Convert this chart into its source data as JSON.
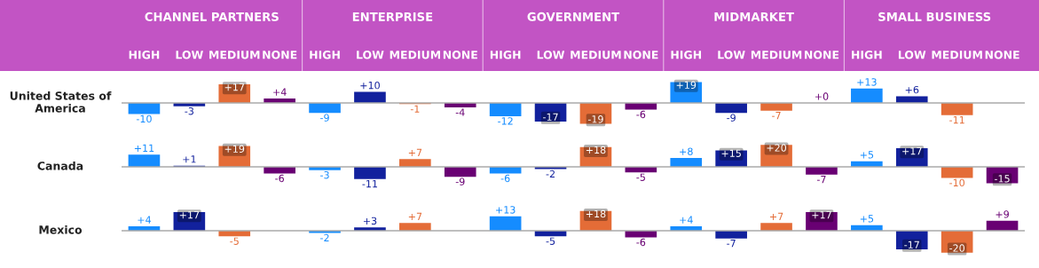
{
  "chart_data": [
    {
      "type": "bar",
      "ylabel": "United States of America",
      "tick_labels": "x",
      "annotations": [
        "CHANNEL PARTNERS",
        "ENTERPRISE",
        "GOVERNMENT",
        "MIDMARKET",
        "SMALL BUSINESS"
      ],
      "categories": [
        "HIGH",
        "LOW",
        "MEDIUM",
        "NONE",
        "HIGH",
        "LOW",
        "MEDIUM",
        "NONE",
        "HIGH",
        "LOW",
        "MEDIUM",
        "NONE",
        "HIGH",
        "LOW",
        "MEDIUM",
        "NONE",
        "HIGH",
        "LOW",
        "MEDIUM",
        "NONE"
      ],
      "values": [
        -10,
        -3,
        17,
        4,
        -9,
        10,
        -1,
        -4,
        -12,
        -17,
        -19,
        -6,
        19,
        -9,
        -7,
        0,
        13,
        6,
        -11,
        null
      ],
      "value_labels": [
        "-10",
        "-3",
        "+17",
        "+4",
        "-9",
        "+10",
        "-1",
        "-4",
        "-12",
        "-17",
        "-19",
        "-6",
        "+19",
        "-9",
        "-7",
        "+0",
        "+13",
        "+6",
        "-11",
        null
      ],
      "colors": [
        "#158cff",
        "#12219d",
        "#e46c37",
        "#690073",
        "#158cff",
        "#12219d",
        "#e46c37",
        "#690073",
        "#158cff",
        "#12219d",
        "#e46c37",
        "#690073",
        "#158cff",
        "#12219d",
        "#e46c37",
        "#690073",
        "#158cff",
        "#12219d",
        "#e46c37",
        "#690073"
      ]
    },
    {
      "type": "bar",
      "ylabel": "Canada",
      "tick_labels": false,
      "values": [
        11,
        1,
        19,
        -6,
        -3,
        -11,
        7,
        -9,
        -6,
        -2,
        18,
        -5,
        8,
        15,
        20,
        -7,
        5,
        17,
        -10,
        -15
      ],
      "value_labels": [
        "+11",
        "+1",
        "+19",
        "-6",
        "-3",
        "-11",
        "+7",
        "-9",
        "-6",
        "-2",
        "+18",
        "-5",
        "+8",
        "+15",
        "+20",
        "-7",
        "+5",
        "+17",
        "-10",
        "-15"
      ],
      "colors": [
        "#158cff",
        "#12219d",
        "#e46c37",
        "#690073",
        "#158cff",
        "#12219d",
        "#e46c37",
        "#690073",
        "#158cff",
        "#12219d",
        "#e46c37",
        "#690073",
        "#158cff",
        "#12219d",
        "#e46c37",
        "#690073",
        "#158cff",
        "#12219d",
        "#e46c37",
        "#690073"
      ]
    },
    {
      "type": "bar",
      "ylabel": "Mexico",
      "tick_labels": false,
      "values": [
        4,
        17,
        -5,
        null,
        -2,
        3,
        7,
        null,
        13,
        -5,
        18,
        -6,
        4,
        -7,
        7,
        17,
        5,
        -17,
        -20,
        9
      ],
      "value_labels": [
        "+4",
        "+17",
        "-5",
        null,
        "-2",
        "+3",
        "+7",
        null,
        "+13",
        "-5",
        "+18",
        "-6",
        "+4",
        "-7",
        "+7",
        "+17",
        "+5",
        "-17",
        "-20",
        "+9"
      ],
      "colors": [
        "#158cff",
        "#12219d",
        "#e46c37",
        "#690073",
        "#158cff",
        "#12219d",
        "#e46c37",
        "#690073",
        "#158cff",
        "#12219d",
        "#e46c37",
        "#690073",
        "#158cff",
        "#12219d",
        "#e46c37",
        "#690073",
        "#158cff",
        "#12219d",
        "#e46c37",
        "#690073"
      ]
    }
  ]
}
